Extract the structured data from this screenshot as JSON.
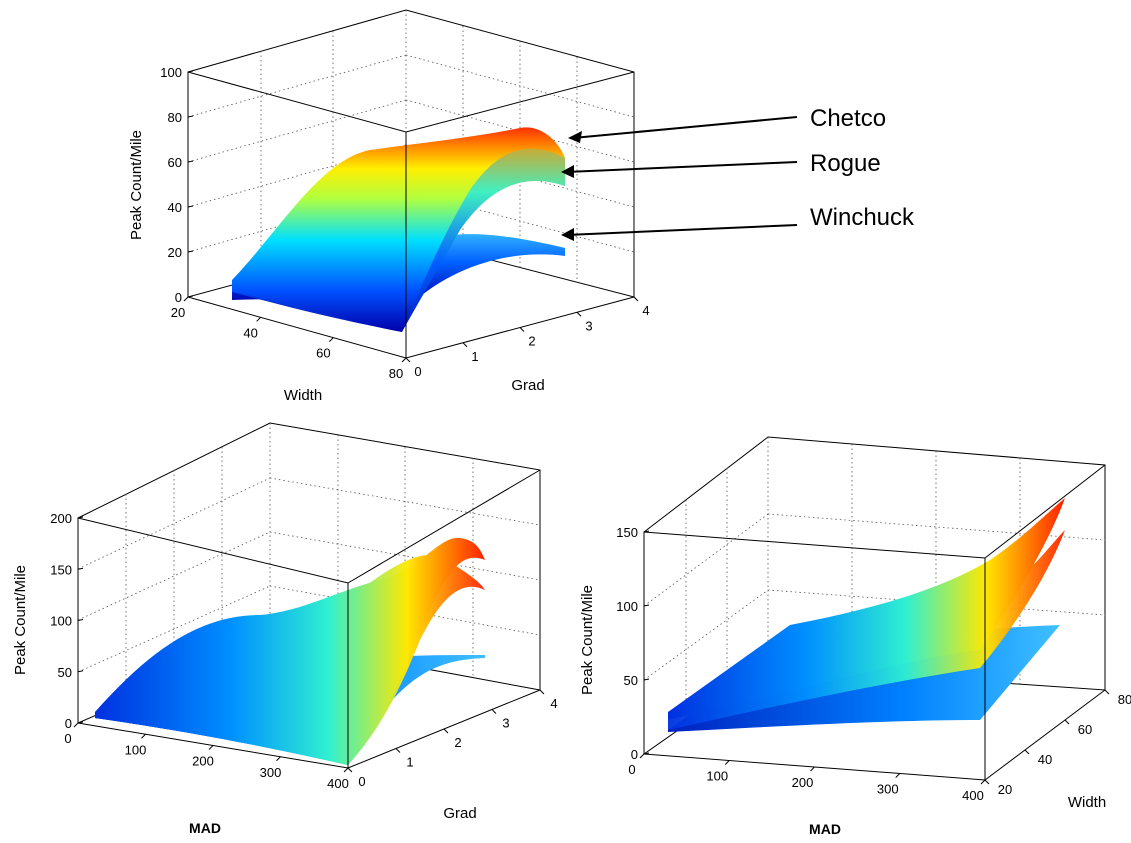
{
  "chart_data": [
    {
      "type": "surface",
      "panel": "top",
      "xlabel": "Width",
      "ylabel": "Grad",
      "zlabel": "Peak Count/Mile",
      "x_ticks": [
        "20",
        "40",
        "60",
        "80"
      ],
      "y_ticks": [
        "0",
        "1",
        "2",
        "3",
        "4"
      ],
      "z_ticks": [
        "0",
        "20",
        "40",
        "60",
        "80",
        "100"
      ],
      "xlim": [
        20,
        80
      ],
      "ylim": [
        0,
        4
      ],
      "zlim": [
        0,
        100
      ],
      "colormap": "jet",
      "series": [
        {
          "name": "Chetco",
          "peak_z": 75
        },
        {
          "name": "Rogue",
          "peak_z": 65
        },
        {
          "name": "Winchuck",
          "peak_z": 30
        }
      ]
    },
    {
      "type": "surface",
      "panel": "bottom-left",
      "xlabel": "MAD",
      "ylabel": "Grad",
      "zlabel": "Peak Count/Mile",
      "x_ticks": [
        "0",
        "100",
        "200",
        "300",
        "400"
      ],
      "y_ticks": [
        "0",
        "1",
        "2",
        "3",
        "4"
      ],
      "z_ticks": [
        "0",
        "50",
        "100",
        "150",
        "200"
      ],
      "xlim": [
        0,
        400
      ],
      "ylim": [
        0,
        4
      ],
      "zlim": [
        0,
        200
      ],
      "colormap": "jet",
      "series": [
        {
          "peak_z": 175
        },
        {
          "peak_z": 150
        },
        {
          "peak_z": 70
        }
      ]
    },
    {
      "type": "surface",
      "panel": "bottom-right",
      "xlabel": "MAD",
      "ylabel": "Width",
      "zlabel": "Peak Count/Mile",
      "x_ticks": [
        "0",
        "100",
        "200",
        "300",
        "400"
      ],
      "y_ticks": [
        "20",
        "40",
        "60",
        "80"
      ],
      "z_ticks": [
        "0",
        "50",
        "100",
        "150"
      ],
      "xlim": [
        0,
        400
      ],
      "ylim": [
        20,
        80
      ],
      "zlim": [
        0,
        150
      ],
      "colormap": "jet",
      "series": [
        {
          "peak_z": 165
        },
        {
          "peak_z": 145
        },
        {
          "peak_z": 70
        }
      ]
    }
  ],
  "annotations": {
    "labels": [
      "Chetco",
      "Rogue",
      "Winchuck"
    ]
  }
}
